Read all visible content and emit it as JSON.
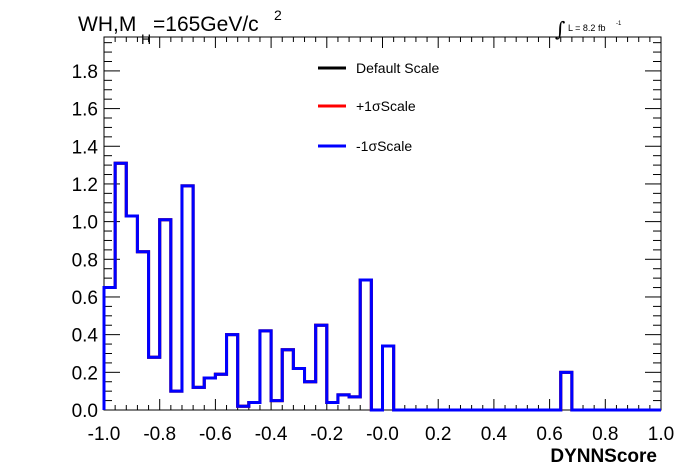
{
  "chart_data": {
    "type": "histogram",
    "title": {
      "main": "WH,M",
      "subscript": "H",
      "value": "=165GeV/c",
      "superscript": "2"
    },
    "luminosity": {
      "symbol": "∫",
      "label": "L = 8.2 fb",
      "superscript": "-1"
    },
    "xlabel": "DYNNScore",
    "ylabel": "",
    "xlim": [
      -1.0,
      1.0
    ],
    "ylim": [
      0.0,
      1.98
    ],
    "x_ticks": [
      -1.0,
      -0.8,
      -0.6,
      -0.4,
      -0.2,
      0.0,
      0.2,
      0.4,
      0.6,
      0.8,
      1.0
    ],
    "x_tick_labels": [
      "-1.0",
      "-0.8",
      "-0.6",
      "-0.4",
      "-0.2",
      "-0.0",
      "0.2",
      "0.4",
      "0.6",
      "0.8",
      "1.0"
    ],
    "y_ticks": [
      0.0,
      0.2,
      0.4,
      0.6,
      0.8,
      1.0,
      1.2,
      1.4,
      1.6,
      1.8
    ],
    "y_tick_labels": [
      "0.0",
      "0.2",
      "0.4",
      "0.6",
      "0.8",
      "1.0",
      "1.2",
      "1.4",
      "1.6",
      "1.8"
    ],
    "bin_edges": [
      -1.0,
      -0.96,
      -0.92,
      -0.88,
      -0.84,
      -0.8,
      -0.76,
      -0.72,
      -0.68,
      -0.64,
      -0.6,
      -0.56,
      -0.52,
      -0.48,
      -0.44,
      -0.4,
      -0.36,
      -0.32,
      -0.28,
      -0.24,
      -0.2,
      -0.16,
      -0.12,
      -0.08,
      -0.04,
      0.0,
      0.04,
      0.08,
      0.12,
      0.16,
      0.2,
      0.24,
      0.28,
      0.32,
      0.36,
      0.4,
      0.44,
      0.48,
      0.52,
      0.56,
      0.6,
      0.64,
      0.68,
      0.72,
      0.76,
      0.8,
      0.84,
      0.88,
      0.92,
      0.96,
      1.0
    ],
    "legend_position": "top-center",
    "series": [
      {
        "name": "Default Scale",
        "color": "#000000",
        "values": [
          0.65,
          1.31,
          1.03,
          0.84,
          0.28,
          1.01,
          0.1,
          1.19,
          0.12,
          0.17,
          0.19,
          0.4,
          0.02,
          0.04,
          0.42,
          0.05,
          0.32,
          0.22,
          0.15,
          0.45,
          0.04,
          0.08,
          0.07,
          0.69,
          0.0,
          0.34,
          0.0,
          0.0,
          0.0,
          0.0,
          0.0,
          0.0,
          0.0,
          0.0,
          0.0,
          0.0,
          0.0,
          0.0,
          0.0,
          0.0,
          0.0,
          0.2,
          0.0,
          0.0,
          0.0,
          0.0,
          0.0,
          0.0,
          0.0,
          0.0
        ]
      },
      {
        "name": "+1σScale",
        "color": "#ff0000",
        "values": [
          0.65,
          1.31,
          1.03,
          0.84,
          0.28,
          1.01,
          0.1,
          1.19,
          0.12,
          0.17,
          0.19,
          0.4,
          0.02,
          0.04,
          0.42,
          0.05,
          0.32,
          0.22,
          0.15,
          0.45,
          0.04,
          0.08,
          0.07,
          0.69,
          0.0,
          0.34,
          0.0,
          0.0,
          0.0,
          0.0,
          0.0,
          0.0,
          0.0,
          0.0,
          0.0,
          0.0,
          0.0,
          0.0,
          0.0,
          0.0,
          0.0,
          0.2,
          0.0,
          0.0,
          0.0,
          0.0,
          0.0,
          0.0,
          0.0,
          0.0
        ]
      },
      {
        "name": "-1σScale",
        "color": "#0000ff",
        "values": [
          0.65,
          1.31,
          1.03,
          0.84,
          0.28,
          1.01,
          0.1,
          1.19,
          0.12,
          0.17,
          0.19,
          0.4,
          0.02,
          0.04,
          0.42,
          0.05,
          0.32,
          0.22,
          0.15,
          0.45,
          0.04,
          0.08,
          0.07,
          0.69,
          0.0,
          0.34,
          0.0,
          0.0,
          0.0,
          0.0,
          0.0,
          0.0,
          0.0,
          0.0,
          0.0,
          0.0,
          0.0,
          0.0,
          0.0,
          0.0,
          0.0,
          0.2,
          0.0,
          0.0,
          0.0,
          0.0,
          0.0,
          0.0,
          0.0,
          0.0
        ]
      }
    ]
  }
}
